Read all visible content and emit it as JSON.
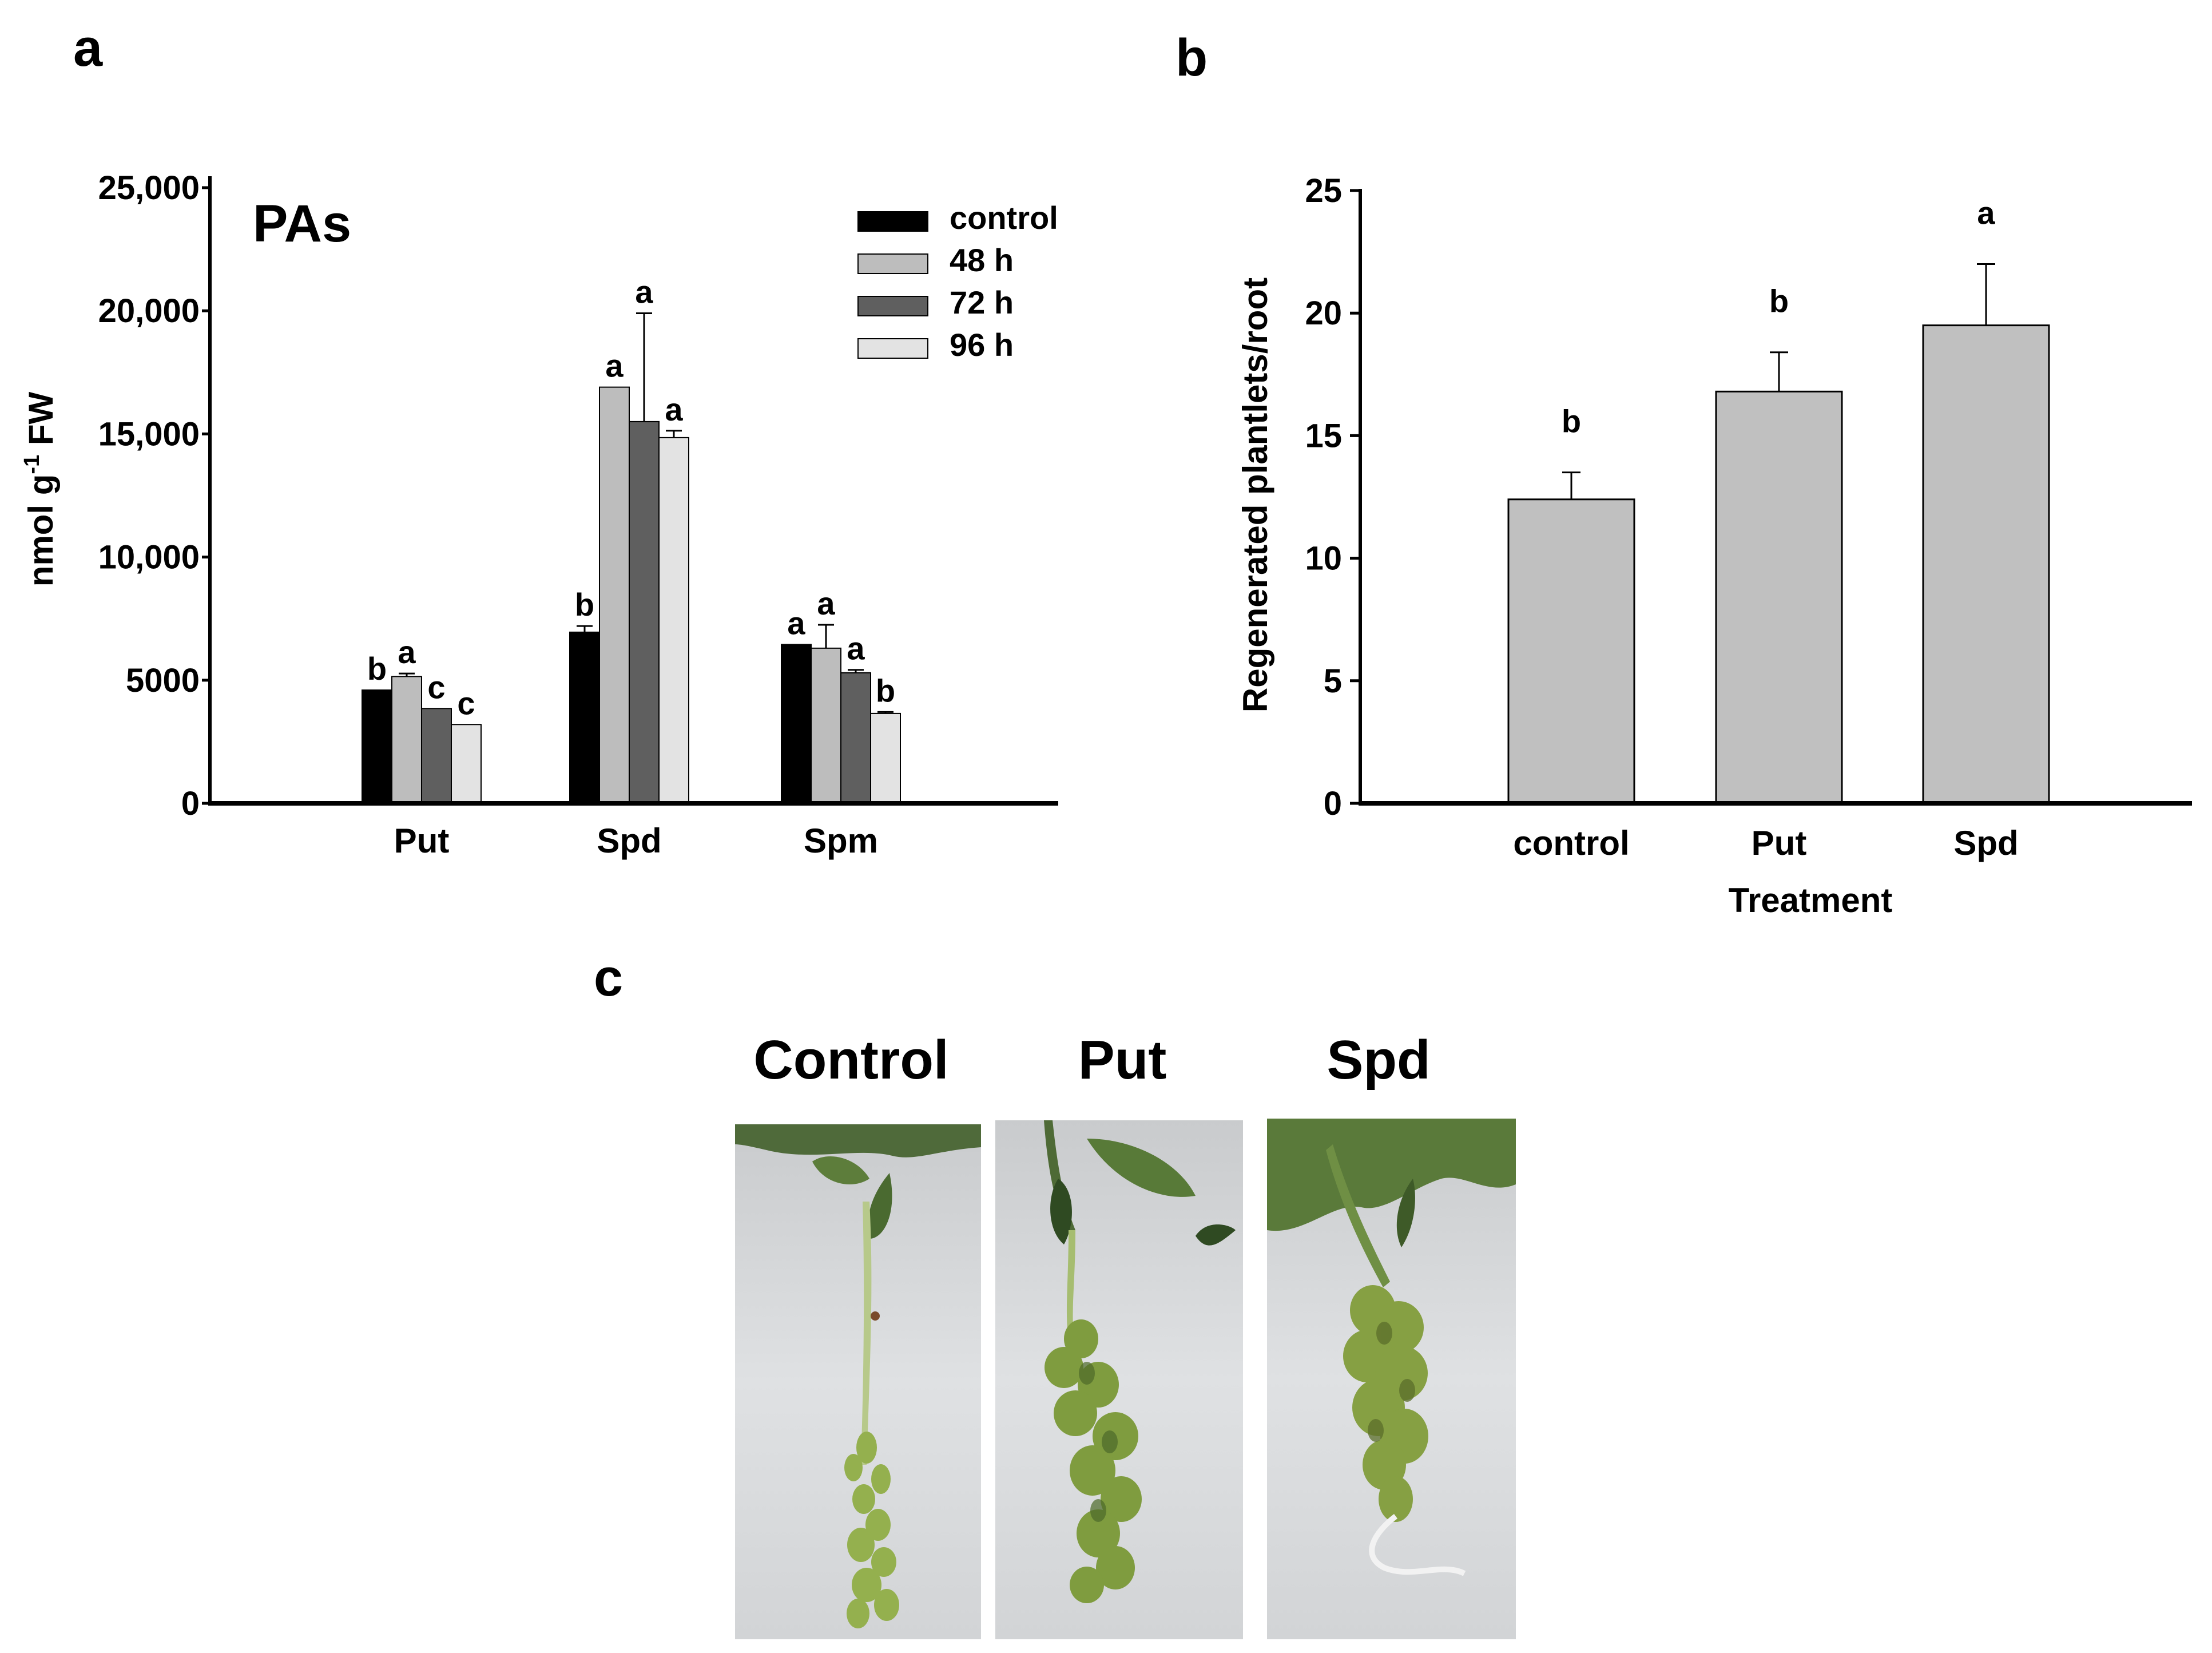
{
  "panel_labels": {
    "a": "a",
    "b": "b",
    "c": "c"
  },
  "chart_data": [
    {
      "id": "a",
      "type": "bar",
      "title": "PAs",
      "xlabel": "",
      "ylabel_parts": [
        "nmol g",
        "-1",
        " FW"
      ],
      "ylim": [
        0,
        25000
      ],
      "yticks": [
        0,
        5000,
        10000,
        15000,
        20000,
        25000
      ],
      "ytick_labels": [
        "0",
        "5000",
        "10,000",
        "15,000",
        "20,000",
        "25,000"
      ],
      "categories": [
        "Put",
        "Spd",
        "Spm"
      ],
      "legend": {
        "position": "top-right"
      },
      "series": [
        {
          "name": "control",
          "color": "#000000",
          "values": [
            4600,
            6950,
            6450
          ],
          "errors": [
            0,
            250,
            0
          ],
          "letters": [
            "b",
            "b",
            "a"
          ]
        },
        {
          "name": "48 h",
          "color": "#bdbdbd",
          "values": [
            5150,
            16900,
            6300
          ],
          "errors": [
            120,
            0,
            950
          ],
          "letters": [
            "a",
            "a",
            "a"
          ]
        },
        {
          "name": "72 h",
          "color": "#5f5f5f",
          "values": [
            3850,
            15500,
            5300
          ],
          "errors": [
            0,
            4400,
            120
          ],
          "letters": [
            "c",
            "a",
            "a"
          ]
        },
        {
          "name": "96 h",
          "color": "#e3e3e3",
          "values": [
            3200,
            14850,
            3650
          ],
          "errors": [
            0,
            280,
            60
          ],
          "letters": [
            "c",
            "a",
            "b"
          ]
        }
      ]
    },
    {
      "id": "b",
      "type": "bar",
      "title": "",
      "xlabel": "Treatment",
      "ylabel": "Regenerated plantlets/root",
      "ylim": [
        0,
        25
      ],
      "yticks": [
        0,
        5,
        10,
        15,
        20,
        25
      ],
      "ytick_labels": [
        "0",
        "5",
        "10",
        "15",
        "20",
        "25"
      ],
      "categories": [
        "control",
        "Put",
        "Spd"
      ],
      "values": [
        12.4,
        16.8,
        19.5
      ],
      "errors": [
        1.1,
        1.6,
        2.5
      ],
      "letters": [
        "b",
        "b",
        "a"
      ],
      "color": "#c0c0c0"
    }
  ],
  "panel_c": {
    "labels": [
      "Control",
      "Put",
      "Spd"
    ],
    "photos": [
      {
        "name": "control-root-photo",
        "bg": "#d3d5d7"
      },
      {
        "name": "put-root-photo",
        "bg": "#d0d2d4"
      },
      {
        "name": "spd-root-photo",
        "bg": "#cfd1d3"
      }
    ]
  }
}
